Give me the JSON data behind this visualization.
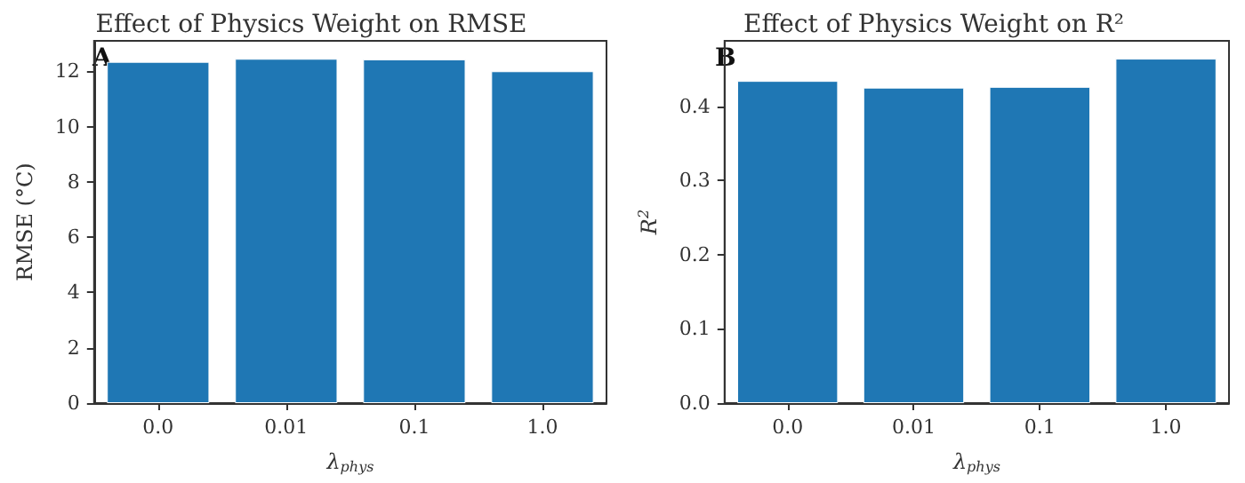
{
  "chart_data": [
    {
      "type": "bar",
      "title": "Effect of Physics Weight on RMSE",
      "xlabel": "λ$_{phys}$",
      "ylabel": "RMSE (°C)",
      "categories": [
        "0.0",
        "0.01",
        "0.1",
        "1.0"
      ],
      "values": [
        12.34,
        12.45,
        12.43,
        12.0
      ],
      "color": "#1f77b4",
      "ylim": [
        0,
        13.1
      ],
      "yticks": [
        0,
        2,
        4,
        6,
        8,
        10,
        12
      ],
      "annotations": [
        "A"
      ]
    },
    {
      "type": "bar",
      "title": "Effect of Physics Weight on R²",
      "xlabel": "λ$_{phys}$",
      "ylabel": "R$^{2}$",
      "categories": [
        "0.0",
        "0.01",
        "0.1",
        "1.0"
      ],
      "values": [
        0.434,
        0.425,
        0.426,
        0.464
      ],
      "color": "#1f77b4",
      "ylim": [
        0,
        0.488
      ],
      "yticks": [
        {
          "value": 0,
          "label": "0.0"
        },
        0.1,
        0.2,
        0.3,
        0.4
      ],
      "annotations": [
        "B"
      ]
    }
  ]
}
